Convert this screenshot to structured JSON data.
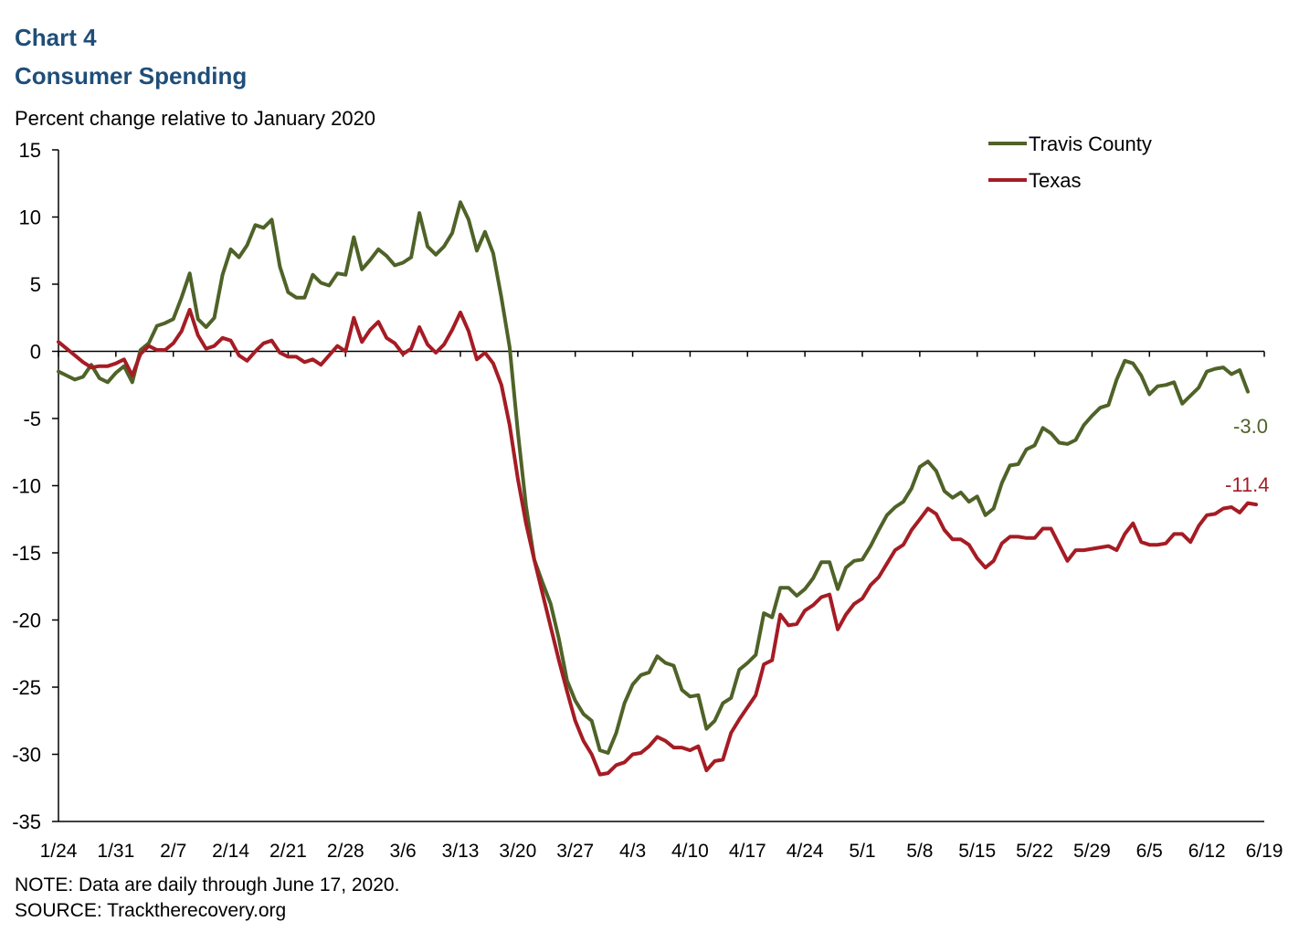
{
  "chart_data": {
    "type": "line",
    "title": "Chart 4",
    "subtitle": "Consumer Spending",
    "ylabel": "Percent change relative to January 2020",
    "xlabel": "",
    "ylim": [
      -35,
      15
    ],
    "yticks": [
      15,
      10,
      5,
      0,
      -5,
      -10,
      -15,
      -20,
      -25,
      -30,
      -35
    ],
    "x_start": "2020-01-24",
    "x_end": "2020-06-19",
    "xtick_labels": [
      "1/24",
      "1/31",
      "2/7",
      "2/14",
      "2/21",
      "2/28",
      "3/6",
      "3/13",
      "3/20",
      "3/27",
      "4/3",
      "4/10",
      "4/17",
      "4/24",
      "5/1",
      "5/8",
      "5/15",
      "5/22",
      "5/29",
      "6/5",
      "6/12",
      "6/19"
    ],
    "grid": false,
    "legend": "top-right",
    "series": [
      {
        "name": "Travis County",
        "color": "#4f6228",
        "end_label": "-3.0",
        "values": [
          -1.5,
          -1.8,
          -2.1,
          -1.9,
          -1.0,
          -2.0,
          -2.3,
          -1.6,
          -1.1,
          -2.3,
          0.1,
          0.6,
          1.9,
          2.1,
          2.4,
          4.0,
          5.8,
          2.4,
          1.8,
          2.5,
          5.7,
          7.6,
          7.0,
          7.9,
          9.4,
          9.2,
          9.8,
          6.3,
          4.4,
          4.0,
          4.0,
          5.7,
          5.1,
          4.9,
          5.8,
          5.7,
          8.5,
          6.1,
          6.8,
          7.6,
          7.1,
          6.4,
          6.6,
          7.0,
          10.3,
          7.8,
          7.2,
          7.8,
          8.8,
          11.1,
          9.8,
          7.5,
          8.9,
          7.3,
          4.0,
          0.3,
          -6.0,
          -11.5,
          -15.5,
          -17.2,
          -18.8,
          -21.4,
          -24.5,
          -26.0,
          -27.0,
          -27.5,
          -29.7,
          -29.9,
          -28.4,
          -26.2,
          -24.8,
          -24.1,
          -23.9,
          -22.7,
          -23.2,
          -23.4,
          -25.2,
          -25.7,
          -25.6,
          -28.1,
          -27.5,
          -26.2,
          -25.8,
          -23.7,
          -23.2,
          -22.6,
          -19.5,
          -19.8,
          -17.6,
          -17.6,
          -18.2,
          -17.7,
          -16.9,
          -15.7,
          -15.7,
          -17.7,
          -16.1,
          -15.6,
          -15.5,
          -14.5,
          -13.3,
          -12.2,
          -11.6,
          -11.2,
          -10.2,
          -8.6,
          -8.2,
          -8.9,
          -10.4,
          -10.9,
          -10.5,
          -11.2,
          -10.8,
          -12.2,
          -11.7,
          -9.8,
          -8.5,
          -8.4,
          -7.3,
          -7.0,
          -5.7,
          -6.1,
          -6.8,
          -6.9,
          -6.6,
          -5.5,
          -4.8,
          -4.2,
          -4.0,
          -2.1,
          -0.7,
          -0.9,
          -1.8,
          -3.2,
          -2.6,
          -2.5,
          -2.3,
          -3.9,
          -3.3,
          -2.7,
          -1.5,
          -1.3,
          -1.2,
          -1.7,
          -1.4,
          -3.0
        ]
      },
      {
        "name": "Texas",
        "color": "#a51c24",
        "end_label": "-11.4",
        "values": [
          0.7,
          0.2,
          -0.3,
          -0.8,
          -1.2,
          -1.1,
          -1.1,
          -0.9,
          -0.6,
          -1.8,
          -0.2,
          0.4,
          0.1,
          0.1,
          0.6,
          1.5,
          3.1,
          1.2,
          0.2,
          0.4,
          1.0,
          0.8,
          -0.3,
          -0.7,
          0.0,
          0.6,
          0.8,
          -0.1,
          -0.4,
          -0.4,
          -0.8,
          -0.6,
          -1.0,
          -0.3,
          0.4,
          0.0,
          2.5,
          0.7,
          1.6,
          2.2,
          1.0,
          0.6,
          -0.2,
          0.2,
          1.8,
          0.5,
          -0.1,
          0.5,
          1.6,
          2.9,
          1.5,
          -0.6,
          -0.1,
          -0.9,
          -2.5,
          -5.5,
          -9.5,
          -12.8,
          -15.5,
          -18.0,
          -20.5,
          -23.0,
          -25.3,
          -27.5,
          -29.0,
          -30.0,
          -31.5,
          -31.4,
          -30.8,
          -30.6,
          -30.0,
          -29.9,
          -29.4,
          -28.7,
          -29.0,
          -29.5,
          -29.5,
          -29.7,
          -29.4,
          -31.2,
          -30.5,
          -30.4,
          -28.4,
          -27.4,
          -26.5,
          -25.6,
          -23.3,
          -23.0,
          -19.6,
          -20.4,
          -20.3,
          -19.3,
          -18.9,
          -18.3,
          -18.1,
          -20.7,
          -19.6,
          -18.8,
          -18.4,
          -17.4,
          -16.8,
          -15.8,
          -14.8,
          -14.4,
          -13.3,
          -12.5,
          -11.7,
          -12.1,
          -13.3,
          -14.0,
          -14.0,
          -14.4,
          -15.4,
          -16.1,
          -15.6,
          -14.3,
          -13.8,
          -13.8,
          -13.9,
          -13.9,
          -13.2,
          -13.2,
          -14.4,
          -15.6,
          -14.8,
          -14.8,
          -14.7,
          -14.6,
          -14.5,
          -14.8,
          -13.6,
          -12.8,
          -14.2,
          -14.4,
          -14.4,
          -14.3,
          -13.6,
          -13.6,
          -14.2,
          -13.0,
          -12.2,
          -12.1,
          -11.7,
          -11.6,
          -12.0,
          -11.3,
          -11.4
        ]
      }
    ]
  },
  "notes": {
    "note": "NOTE: Data are daily through June 17, 2020.",
    "source": "SOURCE: Tracktherecovery.org"
  }
}
